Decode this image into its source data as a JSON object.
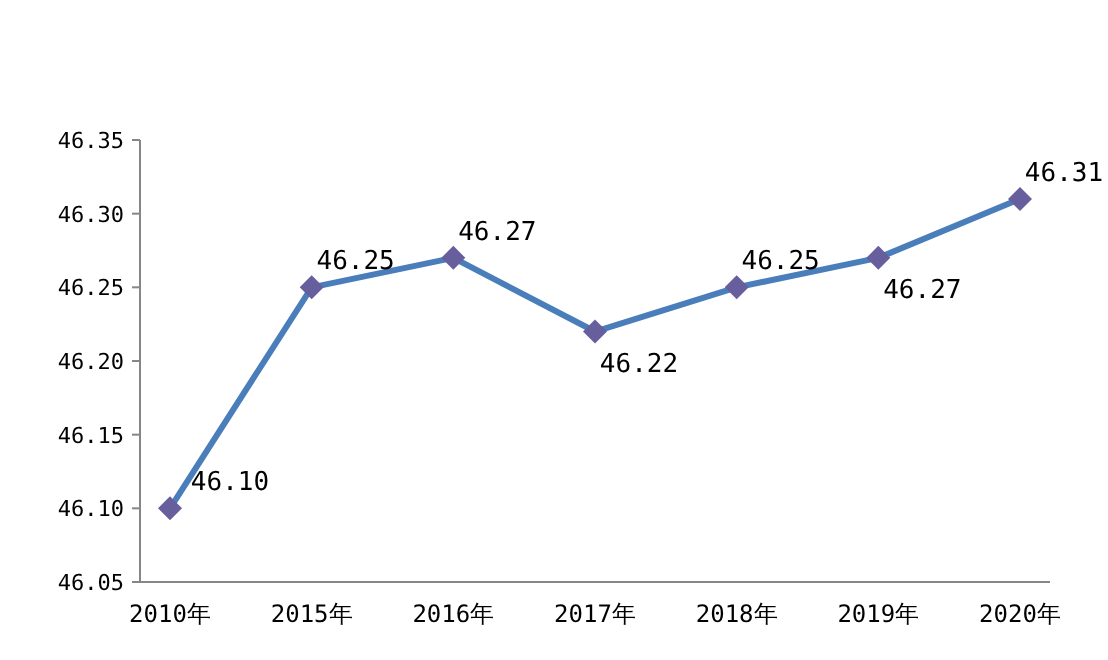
{
  "chart_data": {
    "type": "line",
    "categories": [
      "2010年",
      "2015年",
      "2016年",
      "2017年",
      "2018年",
      "2019年",
      "2020年"
    ],
    "series": [
      {
        "color": "#4a7ebb",
        "values": [
          46.1,
          46.25,
          46.27,
          46.22,
          46.25,
          46.27,
          46.31
        ],
        "value_labels": [
          "46.10",
          "46.25",
          "46.27",
          "46.22",
          "46.25",
          "46.27",
          "46.31"
        ]
      }
    ],
    "ylim": [
      46.05,
      46.35
    ],
    "yticks": [
      {
        "value": 46.05,
        "label": "46.05"
      },
      {
        "value": 46.1,
        "label": "46.10"
      },
      {
        "value": 46.15,
        "label": "46.15"
      },
      {
        "value": 46.2,
        "label": "46.20"
      },
      {
        "value": 46.25,
        "label": "46.25"
      },
      {
        "value": 46.3,
        "label": "46.30"
      },
      {
        "value": 46.35,
        "label": "46.35"
      }
    ],
    "marker": "diamond",
    "grid": false
  }
}
